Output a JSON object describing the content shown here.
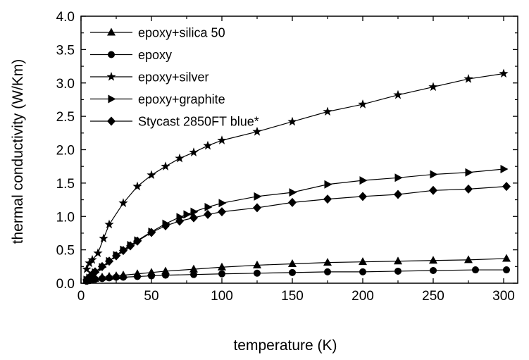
{
  "chart_data": {
    "type": "line",
    "title": "",
    "xlabel": "temperature (K)",
    "ylabel": "thermal conductivity (W/Km)",
    "xlim": [
      0,
      310
    ],
    "ylim": [
      0,
      4.0
    ],
    "xticks": [
      0,
      50,
      100,
      150,
      200,
      250,
      300
    ],
    "xtick_labels": [
      "0",
      "50",
      "100",
      "150",
      "200",
      "250",
      "300"
    ],
    "yticks": [
      0,
      0.5,
      1.0,
      1.5,
      2.0,
      2.5,
      3.0,
      3.5,
      4.0
    ],
    "ytick_labels": [
      "0.0",
      "0.5",
      "1.0",
      "1.5",
      "2.0",
      "2.5",
      "3.0",
      "3.5",
      "4.0"
    ],
    "grid": false,
    "legend_position": "top-left",
    "series": [
      {
        "name": "epoxy+silica 50",
        "marker": "triangle-up",
        "color": "#000000",
        "points": [
          [
            4,
            0.04
          ],
          [
            6,
            0.05
          ],
          [
            8,
            0.06
          ],
          [
            10,
            0.07
          ],
          [
            15,
            0.09
          ],
          [
            20,
            0.1
          ],
          [
            25,
            0.11
          ],
          [
            30,
            0.12
          ],
          [
            40,
            0.14
          ],
          [
            50,
            0.16
          ],
          [
            60,
            0.18
          ],
          [
            80,
            0.21
          ],
          [
            100,
            0.24
          ],
          [
            125,
            0.27
          ],
          [
            150,
            0.29
          ],
          [
            175,
            0.31
          ],
          [
            200,
            0.32
          ],
          [
            225,
            0.33
          ],
          [
            250,
            0.34
          ],
          [
            275,
            0.35
          ],
          [
            302,
            0.37
          ]
        ]
      },
      {
        "name": "epoxy",
        "marker": "circle",
        "color": "#000000",
        "points": [
          [
            4,
            0.03
          ],
          [
            6,
            0.04
          ],
          [
            8,
            0.05
          ],
          [
            10,
            0.06
          ],
          [
            15,
            0.07
          ],
          [
            20,
            0.08
          ],
          [
            25,
            0.09
          ],
          [
            30,
            0.09
          ],
          [
            40,
            0.1
          ],
          [
            50,
            0.11
          ],
          [
            60,
            0.12
          ],
          [
            80,
            0.13
          ],
          [
            100,
            0.14
          ],
          [
            125,
            0.15
          ],
          [
            150,
            0.16
          ],
          [
            175,
            0.17
          ],
          [
            200,
            0.17
          ],
          [
            225,
            0.18
          ],
          [
            250,
            0.19
          ],
          [
            280,
            0.2
          ],
          [
            302,
            0.2
          ]
        ]
      },
      {
        "name": "epoxy+silver",
        "marker": "star",
        "color": "#000000",
        "points": [
          [
            4,
            0.21
          ],
          [
            6,
            0.3
          ],
          [
            8,
            0.35
          ],
          [
            12,
            0.45
          ],
          [
            16,
            0.67
          ],
          [
            20,
            0.88
          ],
          [
            30,
            1.2
          ],
          [
            40,
            1.45
          ],
          [
            50,
            1.62
          ],
          [
            60,
            1.75
          ],
          [
            70,
            1.87
          ],
          [
            80,
            1.96
          ],
          [
            90,
            2.06
          ],
          [
            100,
            2.14
          ],
          [
            125,
            2.27
          ],
          [
            150,
            2.42
          ],
          [
            175,
            2.57
          ],
          [
            200,
            2.68
          ],
          [
            225,
            2.82
          ],
          [
            250,
            2.94
          ],
          [
            275,
            3.06
          ],
          [
            300,
            3.14
          ]
        ]
      },
      {
        "name": "epoxy+graphite",
        "marker": "triangle-right",
        "color": "#000000",
        "points": [
          [
            4,
            0.05
          ],
          [
            6,
            0.08
          ],
          [
            8,
            0.12
          ],
          [
            10,
            0.16
          ],
          [
            15,
            0.24
          ],
          [
            20,
            0.33
          ],
          [
            25,
            0.42
          ],
          [
            30,
            0.5
          ],
          [
            35,
            0.57
          ],
          [
            40,
            0.64
          ],
          [
            50,
            0.77
          ],
          [
            60,
            0.89
          ],
          [
            70,
            0.99
          ],
          [
            75,
            1.03
          ],
          [
            80,
            1.07
          ],
          [
            90,
            1.14
          ],
          [
            100,
            1.2
          ],
          [
            125,
            1.3
          ],
          [
            150,
            1.36
          ],
          [
            175,
            1.48
          ],
          [
            200,
            1.54
          ],
          [
            225,
            1.58
          ],
          [
            250,
            1.63
          ],
          [
            275,
            1.66
          ],
          [
            300,
            1.71
          ]
        ]
      },
      {
        "name": "Stycast 2850FT blue*",
        "marker": "diamond",
        "color": "#000000",
        "points": [
          [
            4,
            0.05
          ],
          [
            6,
            0.09
          ],
          [
            8,
            0.13
          ],
          [
            10,
            0.17
          ],
          [
            15,
            0.25
          ],
          [
            20,
            0.33
          ],
          [
            25,
            0.41
          ],
          [
            30,
            0.49
          ],
          [
            35,
            0.56
          ],
          [
            40,
            0.63
          ],
          [
            50,
            0.76
          ],
          [
            60,
            0.86
          ],
          [
            70,
            0.93
          ],
          [
            80,
            0.98
          ],
          [
            90,
            1.03
          ],
          [
            100,
            1.07
          ],
          [
            125,
            1.13
          ],
          [
            150,
            1.21
          ],
          [
            175,
            1.26
          ],
          [
            200,
            1.3
          ],
          [
            225,
            1.33
          ],
          [
            250,
            1.39
          ],
          [
            275,
            1.41
          ],
          [
            302,
            1.45
          ]
        ]
      }
    ]
  }
}
